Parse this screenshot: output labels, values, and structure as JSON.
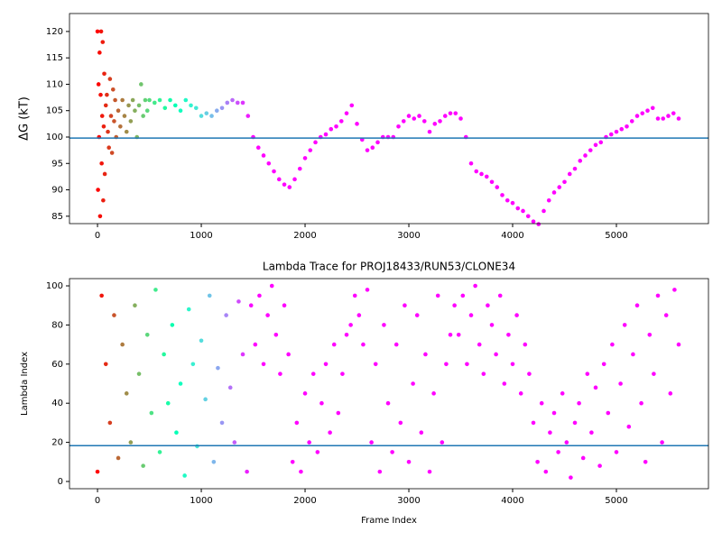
{
  "chart_data": [
    {
      "type": "scatter",
      "ylabel": "ΔG (kT)",
      "colormap": "rainbow",
      "hline": 99.8,
      "hline_color": "#1f77b4",
      "xlim": [
        -270,
        5887
      ],
      "ylim": [
        83.6,
        123.4
      ],
      "xticks": [
        0,
        1000,
        2000,
        3000,
        4000,
        5000
      ],
      "yticks": [
        85,
        90,
        95,
        100,
        105,
        110,
        115,
        120
      ],
      "x": [
        0,
        5,
        10,
        15,
        20,
        25,
        30,
        35,
        40,
        45,
        50,
        55,
        60,
        65,
        70,
        80,
        90,
        100,
        110,
        120,
        130,
        140,
        150,
        160,
        170,
        180,
        200,
        220,
        240,
        260,
        280,
        300,
        320,
        340,
        360,
        380,
        400,
        420,
        440,
        460,
        480,
        500,
        550,
        600,
        650,
        700,
        750,
        800,
        850,
        900,
        950,
        1000,
        1050,
        1100,
        1150,
        1200,
        1250,
        1300,
        1350,
        1400,
        1450,
        1500,
        1550,
        1600,
        1650,
        1700,
        1750,
        1800,
        1850,
        1900,
        1950,
        2000,
        2050,
        2100,
        2150,
        2200,
        2250,
        2300,
        2350,
        2400,
        2450,
        2500,
        2550,
        2600,
        2650,
        2700,
        2750,
        2800,
        2850,
        2900,
        2950,
        3000,
        3050,
        3100,
        3150,
        3200,
        3250,
        3300,
        3350,
        3400,
        3450,
        3500,
        3550,
        3600,
        3650,
        3700,
        3750,
        3800,
        3850,
        3900,
        3950,
        4000,
        4050,
        4100,
        4150,
        4200,
        4250,
        4300,
        4350,
        4400,
        4450,
        4500,
        4550,
        4600,
        4650,
        4700,
        4750,
        4800,
        4850,
        4900,
        4950,
        5000,
        5050,
        5100,
        5150,
        5200,
        5250,
        5300,
        5350,
        5400,
        5450,
        5500,
        5550,
        5600
      ],
      "values": [
        120,
        90,
        110,
        100,
        116,
        85,
        108,
        120,
        95,
        104,
        118,
        88,
        102,
        112,
        93,
        106,
        108,
        101,
        98,
        111,
        104,
        97,
        109,
        103,
        107,
        100,
        105,
        102,
        107,
        104,
        101,
        106,
        103,
        107,
        105,
        100,
        106,
        110,
        104,
        107,
        105,
        107,
        106.5,
        107,
        105.5,
        107,
        106,
        105,
        107,
        106,
        105.5,
        104,
        104.5,
        104,
        105,
        105.5,
        106.5,
        107,
        106.5,
        106.5,
        104,
        100,
        98,
        96.5,
        95,
        93.5,
        92,
        91,
        90.5,
        92,
        94,
        96,
        97.5,
        99,
        100,
        100.5,
        101.5,
        102,
        103,
        104.5,
        106,
        102.5,
        99.5,
        97.5,
        98,
        99,
        100,
        100,
        100,
        102,
        103,
        104,
        103.5,
        104,
        103,
        101,
        102.5,
        103,
        104,
        104.5,
        104.5,
        103.5,
        100,
        95,
        93.5,
        93,
        92.5,
        91.5,
        90.5,
        89,
        88,
        87.5,
        86.5,
        86,
        85,
        84,
        83.5,
        86,
        88,
        89.5,
        90.5,
        91.5,
        93,
        94,
        95.5,
        96.5,
        97.5,
        98.5,
        99,
        100,
        100.5,
        101,
        101.5,
        102,
        103,
        104,
        104.5,
        105,
        105.5,
        103.5,
        103.5,
        104,
        104.5,
        103.5
      ]
    },
    {
      "type": "scatter",
      "title": "Lambda Trace for PROJ18433/RUN53/CLONE34",
      "xlabel": "Frame Index",
      "ylabel": "Lambda Index",
      "colormap": "rainbow",
      "hline": 18.3,
      "hline_color": "#1f77b4",
      "xlim": [
        -270,
        5887
      ],
      "ylim": [
        -3.7,
        103.7
      ],
      "xticks": [
        0,
        1000,
        2000,
        3000,
        4000,
        5000
      ],
      "yticks": [
        0,
        20,
        40,
        60,
        80,
        100
      ],
      "x": [
        0,
        40,
        80,
        120,
        160,
        200,
        240,
        280,
        320,
        360,
        400,
        440,
        480,
        520,
        560,
        600,
        640,
        680,
        720,
        760,
        800,
        840,
        880,
        920,
        960,
        1000,
        1040,
        1080,
        1120,
        1160,
        1200,
        1240,
        1280,
        1320,
        1360,
        1400,
        1440,
        1480,
        1520,
        1560,
        1600,
        1640,
        1680,
        1720,
        1760,
        1800,
        1840,
        1880,
        1920,
        1960,
        2000,
        2040,
        2080,
        2120,
        2160,
        2200,
        2240,
        2280,
        2320,
        2360,
        2400,
        2440,
        2480,
        2520,
        2560,
        2600,
        2640,
        2680,
        2720,
        2760,
        2800,
        2840,
        2880,
        2920,
        2960,
        3000,
        3040,
        3080,
        3120,
        3160,
        3200,
        3240,
        3280,
        3320,
        3360,
        3400,
        3440,
        3480,
        3520,
        3560,
        3600,
        3640,
        3680,
        3720,
        3760,
        3800,
        3840,
        3880,
        3920,
        3960,
        4000,
        4040,
        4080,
        4120,
        4160,
        4200,
        4240,
        4280,
        4320,
        4360,
        4400,
        4440,
        4480,
        4520,
        4560,
        4600,
        4640,
        4680,
        4720,
        4760,
        4800,
        4840,
        4880,
        4920,
        4960,
        5000,
        5040,
        5080,
        5120,
        5160,
        5200,
        5240,
        5280,
        5320,
        5360,
        5400,
        5440,
        5480,
        5520,
        5560,
        5600
      ],
      "values": [
        5,
        95,
        60,
        30,
        85,
        12,
        70,
        45,
        20,
        90,
        55,
        8,
        75,
        35,
        98,
        15,
        65,
        40,
        80,
        25,
        50,
        3,
        88,
        60,
        18,
        72,
        42,
        95,
        10,
        58,
        30,
        85,
        48,
        20,
        92,
        65,
        5,
        90,
        70,
        95,
        60,
        85,
        100,
        75,
        55,
        90,
        65,
        10,
        30,
        5,
        45,
        20,
        55,
        15,
        40,
        60,
        25,
        70,
        35,
        55,
        75,
        80,
        95,
        85,
        70,
        98,
        20,
        60,
        5,
        80,
        40,
        15,
        70,
        30,
        90,
        10,
        50,
        85,
        25,
        65,
        5,
        45,
        95,
        20,
        60,
        75,
        90,
        75,
        95,
        60,
        85,
        100,
        70,
        55,
        90,
        80,
        65,
        95,
        50,
        75,
        60,
        85,
        45,
        70,
        55,
        30,
        10,
        40,
        5,
        25,
        35,
        15,
        45,
        20,
        2,
        30,
        40,
        12,
        55,
        25,
        48,
        8,
        60,
        35,
        70,
        15,
        50,
        80,
        28,
        65,
        90,
        40,
        10,
        75,
        55,
        95,
        20,
        85,
        45,
        98,
        70
      ]
    }
  ]
}
